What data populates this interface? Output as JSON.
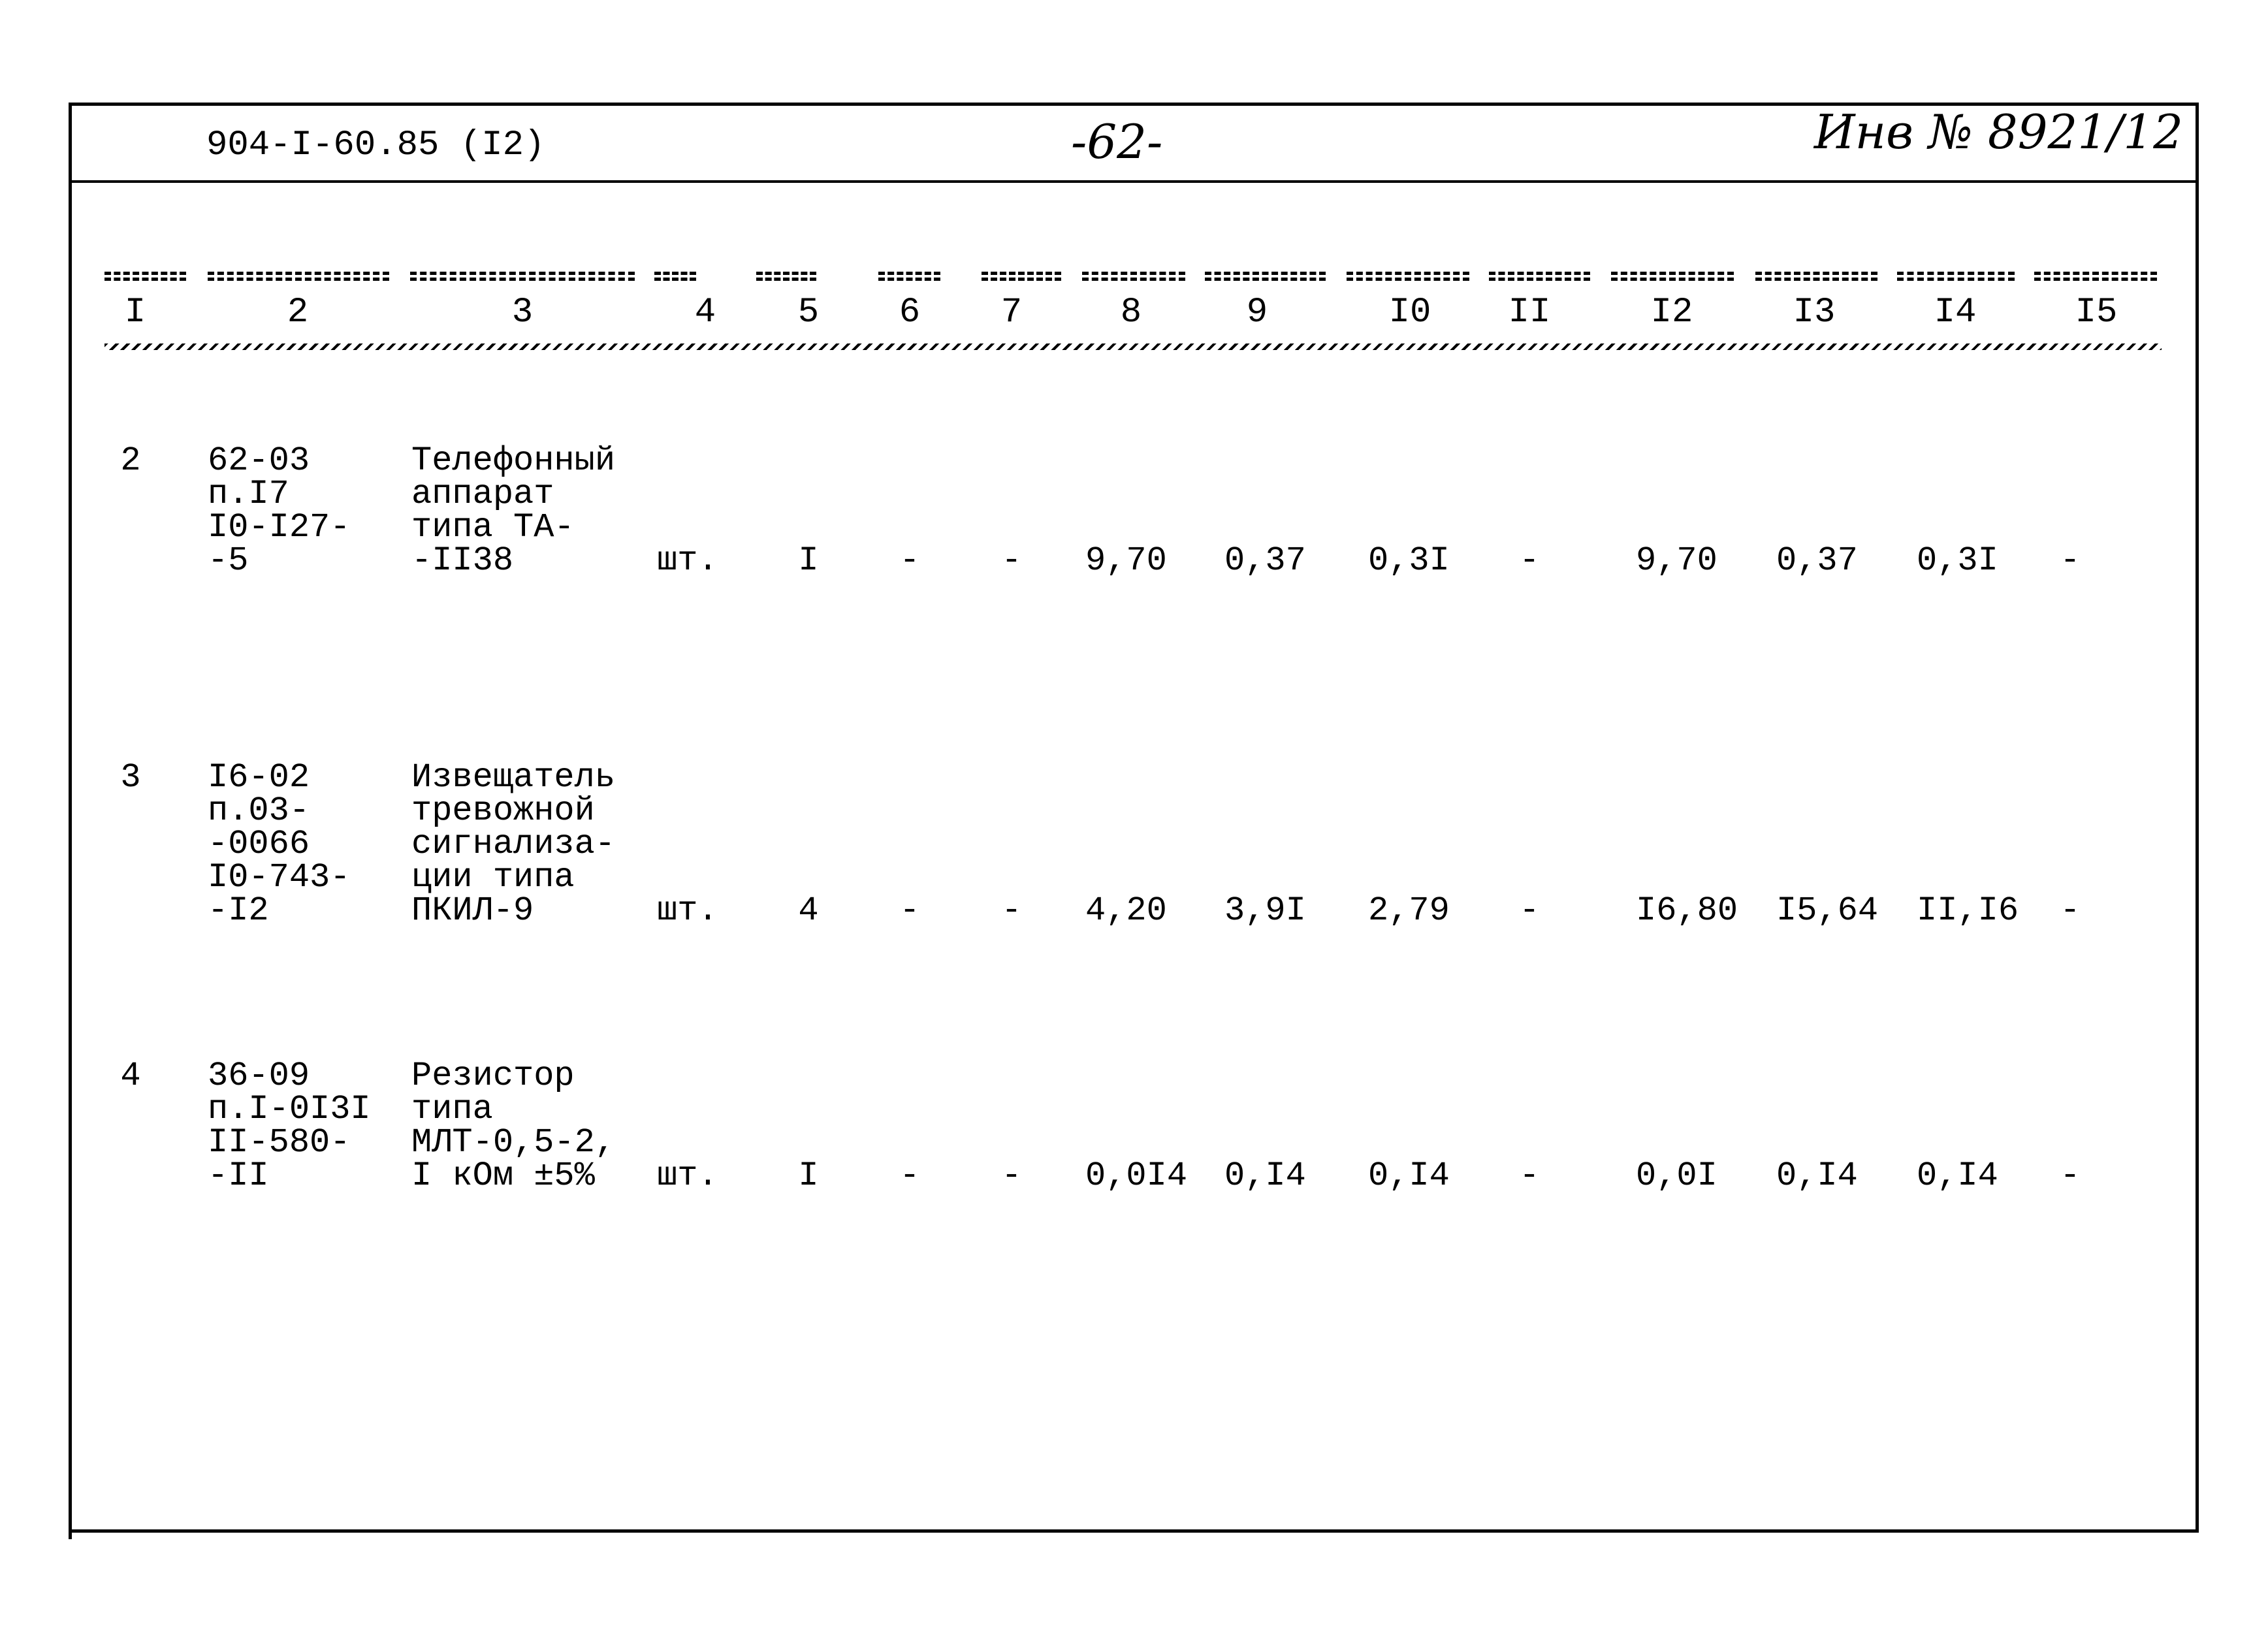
{
  "header": {
    "doc_code": "904-I-60.85 (I2)",
    "page_number": "-62-",
    "inventory": "Инв № 8921/12"
  },
  "columns": [
    "I",
    "2",
    "3",
    "4",
    "5",
    "6",
    "7",
    "8",
    "9",
    "I0",
    "II",
    "I2",
    "I3",
    "I4",
    "I5"
  ],
  "rows": [
    {
      "no": "2",
      "code": "62-03\nп.I7\nI0-I27-\n-5",
      "name": "Телефонный\nаппарат\nтипа ТА-\n-II38",
      "unit": "шт.",
      "qty": "I",
      "c6": "-",
      "c7": "-",
      "c8": "9,70",
      "c9": "0,37",
      "c10": "0,3I",
      "c11": "-",
      "c12": "9,70",
      "c13": "0,37",
      "c14": "0,3I",
      "c15": "-"
    },
    {
      "no": "3",
      "code": "I6-02\nп.03-\n-0066\nI0-743-\n-I2",
      "name": "Извещатель\nтревожной\nсигнализа-\nции типа\nПКИЛ-9",
      "unit": "шт.",
      "qty": "4",
      "c6": "-",
      "c7": "-",
      "c8": "4,20",
      "c9": "3,9I",
      "c10": "2,79",
      "c11": "-",
      "c12": "I6,80",
      "c13": "I5,64",
      "c14": "II,I6",
      "c15": "-"
    },
    {
      "no": "4",
      "code": "36-09\nп.I-0I3I\nII-580-\n-II",
      "name": "Резистор\nтипа\nМЛТ-0,5-2,\nI кОм ±5%",
      "unit": "шт.",
      "qty": "I",
      "c6": "-",
      "c7": "-",
      "c8": "0,0I4",
      "c9": "0,I4",
      "c10": "0,I4",
      "c11": "-",
      "c12": "0,0I",
      "c13": "0,I4",
      "c14": "0,I4",
      "c15": "-"
    }
  ]
}
